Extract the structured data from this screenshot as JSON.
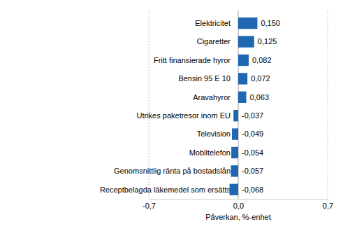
{
  "chart_data": {
    "type": "bar",
    "orientation": "horizontal",
    "categories": [
      "Elektricitet",
      "Cigaretter",
      "Fritt finansierade hyror",
      "Bensin 95 E 10",
      "Aravahyror",
      "Utrikes paketresor inom EU",
      "Television",
      "Mobiltelefon",
      "Genomsnittlig ränta på bostadslån",
      "Receptbelagda läkemedel som ersätts"
    ],
    "values": [
      0.15,
      0.125,
      0.082,
      0.072,
      0.063,
      -0.037,
      -0.049,
      -0.054,
      -0.057,
      -0.068
    ],
    "value_labels": [
      "0,150",
      "0,125",
      "0,082",
      "0,072",
      "0,063",
      "-0,037",
      "-0,049",
      "-0,054",
      "-0,057",
      "-0,068"
    ],
    "data_labels": true,
    "color": "#1f67b1",
    "xlabel": "Påverkan, %-enhet",
    "xlim": [
      -0.7,
      0.7
    ],
    "xticks": [
      {
        "value": -0.7,
        "label": "-0,7"
      },
      {
        "value": 0.0,
        "label": "0,0"
      },
      {
        "value": 0.7,
        "label": "0,7"
      }
    ],
    "grid": true
  }
}
